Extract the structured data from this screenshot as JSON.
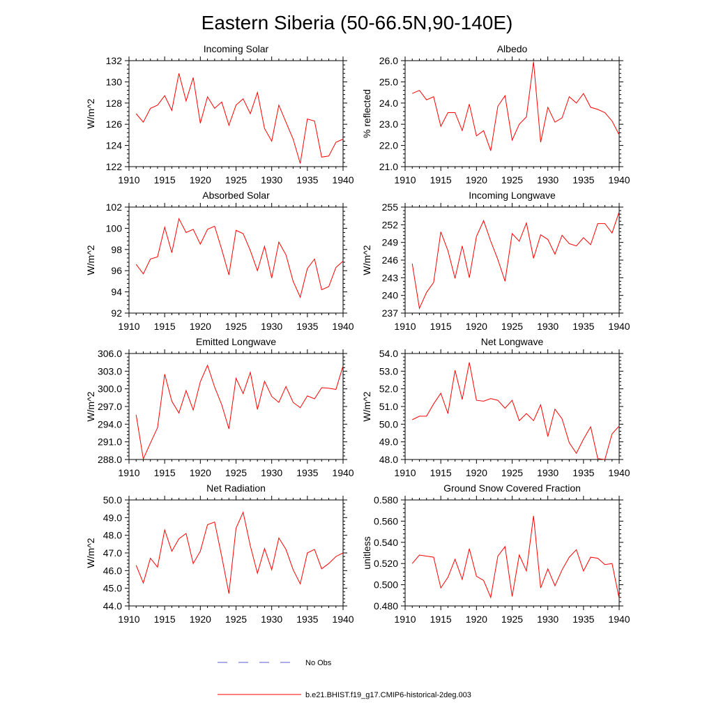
{
  "title": "Eastern Siberia (50-66.5N,90-140E)",
  "colors": {
    "model": "#ff0000",
    "obs": "#5a5acd",
    "axis": "#000000"
  },
  "legend": {
    "obs_label": "No Obs",
    "model_label": "b.e21.BHIST.f19_g17.CMIP6-historical-2deg.003"
  },
  "x_ticks": [
    1910,
    1915,
    1920,
    1925,
    1930,
    1935,
    1940
  ],
  "chart_data": [
    {
      "type": "line",
      "title": "Incoming Solar",
      "xlabel": "",
      "ylabel": "W/m^2",
      "xlim": [
        1910,
        1940
      ],
      "ylim": [
        122,
        132
      ],
      "yticks": [
        "122",
        "124",
        "126",
        "128",
        "130",
        "132"
      ],
      "x": [
        1911,
        1912,
        1913,
        1914,
        1915,
        1916,
        1917,
        1918,
        1919,
        1920,
        1921,
        1922,
        1923,
        1924,
        1925,
        1926,
        1927,
        1928,
        1929,
        1930,
        1931,
        1932,
        1933,
        1934,
        1935,
        1936,
        1937,
        1938,
        1939,
        1940
      ],
      "values": [
        127.0,
        126.2,
        127.5,
        127.8,
        128.7,
        127.3,
        130.8,
        128.2,
        130.4,
        126.1,
        128.6,
        127.5,
        128.1,
        125.9,
        127.8,
        128.4,
        127.0,
        129.0,
        125.6,
        124.4,
        127.8,
        126.2,
        124.6,
        122.3,
        126.5,
        126.3,
        122.9,
        123.0,
        124.3,
        124.6
      ],
      "series_name": "b.e21.BHIST.f19_g17.CMIP6-historical-2deg.003"
    },
    {
      "type": "line",
      "title": "Albedo",
      "xlabel": "",
      "ylabel": "% reflected",
      "xlim": [
        1910,
        1940
      ],
      "ylim": [
        21.0,
        26.0
      ],
      "yticks": [
        "21.0",
        "22.0",
        "23.0",
        "24.0",
        "25.0",
        "26.0"
      ],
      "x": [
        1911,
        1912,
        1913,
        1914,
        1915,
        1916,
        1917,
        1918,
        1919,
        1920,
        1921,
        1922,
        1923,
        1924,
        1925,
        1926,
        1927,
        1928,
        1929,
        1930,
        1931,
        1932,
        1933,
        1934,
        1935,
        1936,
        1937,
        1938,
        1939,
        1940
      ],
      "values": [
        24.45,
        24.6,
        24.15,
        24.3,
        22.9,
        23.55,
        23.55,
        22.7,
        23.95,
        22.45,
        22.7,
        21.75,
        23.85,
        24.35,
        22.25,
        23.0,
        23.35,
        25.95,
        22.15,
        23.8,
        23.1,
        23.3,
        24.3,
        24.0,
        24.45,
        23.8,
        23.7,
        23.55,
        23.15,
        22.5
      ],
      "series_name": "b.e21.BHIST.f19_g17.CMIP6-historical-2deg.003"
    },
    {
      "type": "line",
      "title": "Absorbed Solar",
      "xlabel": "",
      "ylabel": "W/m^2",
      "xlim": [
        1910,
        1940
      ],
      "ylim": [
        92,
        102
      ],
      "yticks": [
        "92",
        "94",
        "96",
        "98",
        "100",
        "102"
      ],
      "x": [
        1911,
        1912,
        1913,
        1914,
        1915,
        1916,
        1917,
        1918,
        1919,
        1920,
        1921,
        1922,
        1923,
        1924,
        1925,
        1926,
        1927,
        1928,
        1929,
        1930,
        1931,
        1932,
        1933,
        1934,
        1935,
        1936,
        1937,
        1938,
        1939,
        1940
      ],
      "values": [
        96.6,
        95.7,
        97.1,
        97.3,
        100.1,
        97.7,
        100.9,
        99.6,
        99.9,
        98.5,
        99.9,
        100.2,
        98.0,
        95.6,
        99.8,
        99.5,
        97.9,
        96.0,
        98.3,
        95.3,
        98.7,
        97.5,
        95.0,
        93.5,
        96.2,
        97.1,
        94.2,
        94.5,
        96.3,
        96.9
      ],
      "series_name": "b.e21.BHIST.f19_g17.CMIP6-historical-2deg.003"
    },
    {
      "type": "line",
      "title": "Incoming Longwave",
      "xlabel": "",
      "ylabel": "W/m^2",
      "xlim": [
        1910,
        1940
      ],
      "ylim": [
        237,
        255
      ],
      "yticks": [
        "237",
        "240",
        "243",
        "246",
        "249",
        "252",
        "255"
      ],
      "x": [
        1911,
        1912,
        1913,
        1914,
        1915,
        1916,
        1917,
        1918,
        1919,
        1920,
        1921,
        1922,
        1923,
        1924,
        1925,
        1926,
        1927,
        1928,
        1929,
        1930,
        1931,
        1932,
        1933,
        1934,
        1935,
        1936,
        1937,
        1938,
        1939,
        1940
      ],
      "values": [
        245.4,
        237.8,
        240.5,
        242.2,
        250.8,
        247.6,
        242.9,
        248.4,
        243.0,
        250.0,
        252.7,
        249.2,
        246.1,
        242.4,
        250.5,
        249.2,
        252.3,
        246.3,
        250.3,
        249.5,
        247.0,
        250.2,
        248.8,
        248.4,
        249.8,
        248.6,
        252.2,
        252.2,
        250.6,
        254.2
      ],
      "series_name": "b.e21.BHIST.f19_g17.CMIP6-historical-2deg.003"
    },
    {
      "type": "line",
      "title": "Emitted Longwave",
      "xlabel": "",
      "ylabel": "W/m^2",
      "xlim": [
        1910,
        1940
      ],
      "ylim": [
        288.0,
        306.0
      ],
      "yticks": [
        "288.0",
        "291.0",
        "294.0",
        "297.0",
        "300.0",
        "303.0",
        "306.0"
      ],
      "x": [
        1911,
        1912,
        1913,
        1914,
        1915,
        1916,
        1917,
        1918,
        1919,
        1920,
        1921,
        1922,
        1923,
        1924,
        1925,
        1926,
        1927,
        1928,
        1929,
        1930,
        1931,
        1932,
        1933,
        1934,
        1935,
        1936,
        1937,
        1938,
        1939,
        1940
      ],
      "values": [
        295.6,
        288.1,
        290.8,
        293.4,
        302.5,
        297.9,
        295.9,
        299.7,
        296.4,
        301.2,
        304.0,
        300.3,
        297.3,
        293.2,
        301.8,
        299.2,
        302.8,
        296.5,
        301.3,
        298.7,
        297.7,
        300.4,
        297.7,
        296.8,
        298.8,
        298.3,
        300.2,
        300.1,
        299.9,
        303.9
      ],
      "series_name": "b.e21.BHIST.f19_g17.CMIP6-historical-2deg.003"
    },
    {
      "type": "line",
      "title": "Net Longwave",
      "xlabel": "",
      "ylabel": "W/m^2",
      "xlim": [
        1910,
        1940
      ],
      "ylim": [
        48.0,
        54.0
      ],
      "yticks": [
        "48.0",
        "49.0",
        "50.0",
        "51.0",
        "52.0",
        "53.0",
        "54.0"
      ],
      "x": [
        1911,
        1912,
        1913,
        1914,
        1915,
        1916,
        1917,
        1918,
        1919,
        1920,
        1921,
        1922,
        1923,
        1924,
        1925,
        1926,
        1927,
        1928,
        1929,
        1930,
        1931,
        1932,
        1933,
        1934,
        1935,
        1936,
        1937,
        1938,
        1939,
        1940
      ],
      "values": [
        50.25,
        50.45,
        50.45,
        51.15,
        51.75,
        50.6,
        53.05,
        51.4,
        53.5,
        51.35,
        51.3,
        51.45,
        51.35,
        50.9,
        51.35,
        50.2,
        50.6,
        50.2,
        51.1,
        49.3,
        50.85,
        50.3,
        48.95,
        48.35,
        49.15,
        49.85,
        48.05,
        48.0,
        49.45,
        49.9
      ],
      "series_name": "b.e21.BHIST.f19_g17.CMIP6-historical-2deg.003"
    },
    {
      "type": "line",
      "title": "Net Radiation",
      "xlabel": "",
      "ylabel": "W/m^2",
      "xlim": [
        1910,
        1940
      ],
      "ylim": [
        44.0,
        50.0
      ],
      "yticks": [
        "44.0",
        "45.0",
        "46.0",
        "47.0",
        "48.0",
        "49.0",
        "50.0"
      ],
      "x": [
        1911,
        1912,
        1913,
        1914,
        1915,
        1916,
        1917,
        1918,
        1919,
        1920,
        1921,
        1922,
        1923,
        1924,
        1925,
        1926,
        1927,
        1928,
        1929,
        1930,
        1931,
        1932,
        1933,
        1934,
        1935,
        1936,
        1937,
        1938,
        1939,
        1940
      ],
      "values": [
        46.3,
        45.3,
        46.7,
        46.2,
        48.3,
        47.1,
        47.8,
        48.1,
        46.4,
        47.1,
        48.6,
        48.75,
        46.8,
        44.7,
        48.4,
        49.3,
        47.4,
        45.85,
        47.25,
        46.05,
        47.85,
        47.2,
        46.05,
        45.25,
        47.0,
        47.2,
        46.1,
        46.4,
        46.8,
        47.0
      ],
      "series_name": "b.e21.BHIST.f19_g17.CMIP6-historical-2deg.003"
    },
    {
      "type": "line",
      "title": "Ground Snow Covered Fraction",
      "xlabel": "",
      "ylabel": "unitless",
      "xlim": [
        1910,
        1940
      ],
      "ylim": [
        0.48,
        0.58
      ],
      "yticks": [
        "0.480",
        "0.500",
        "0.520",
        "0.540",
        "0.560",
        "0.580"
      ],
      "x": [
        1911,
        1912,
        1913,
        1914,
        1915,
        1916,
        1917,
        1918,
        1919,
        1920,
        1921,
        1922,
        1923,
        1924,
        1925,
        1926,
        1927,
        1928,
        1929,
        1930,
        1931,
        1932,
        1933,
        1934,
        1935,
        1936,
        1937,
        1938,
        1939,
        1940
      ],
      "values": [
        0.52,
        0.528,
        0.527,
        0.526,
        0.497,
        0.507,
        0.524,
        0.505,
        0.534,
        0.508,
        0.504,
        0.488,
        0.527,
        0.536,
        0.489,
        0.528,
        0.513,
        0.565,
        0.497,
        0.515,
        0.499,
        0.514,
        0.526,
        0.533,
        0.513,
        0.526,
        0.525,
        0.519,
        0.52,
        0.487
      ],
      "series_name": "b.e21.BHIST.f19_g17.CMIP6-historical-2deg.003"
    }
  ]
}
